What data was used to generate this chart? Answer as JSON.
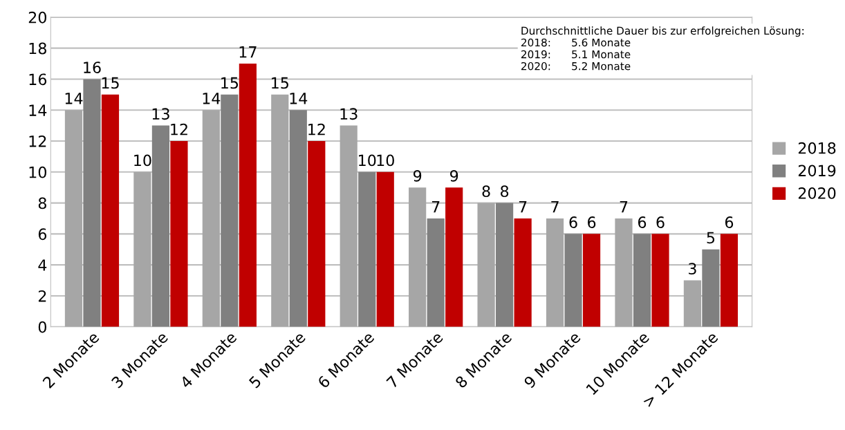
{
  "chart_data": {
    "type": "bar",
    "categories": [
      "2 Monate",
      "3 Monate",
      "4 Monate",
      "5 Monate",
      "6 Monate",
      "7 Monate",
      "8 Monate",
      "9 Monate",
      "10 Monate",
      "> 12 Monate"
    ],
    "series": [
      {
        "name": "2018",
        "color": "#a6a6a6",
        "values": [
          14,
          10,
          14,
          15,
          13,
          9,
          8,
          7,
          7,
          3
        ]
      },
      {
        "name": "2019",
        "color": "#808080",
        "values": [
          16,
          13,
          15,
          14,
          10,
          7,
          8,
          6,
          6,
          5
        ]
      },
      {
        "name": "2020",
        "color": "#c00000",
        "values": [
          15,
          12,
          17,
          12,
          10,
          9,
          7,
          6,
          6,
          6
        ]
      }
    ],
    "ylim": [
      0,
      20
    ],
    "yticks": [
      0,
      2,
      4,
      6,
      8,
      10,
      12,
      14,
      16,
      18,
      20
    ],
    "grid": "y",
    "legend": "right",
    "data_labels": true,
    "annotations": [
      "Durchschnittliche Dauer bis zur erfolgreichen Lösung:",
      "2018:      5.6 Monate",
      "2019:      5.1 Monate",
      "2020:      5.2 Monate"
    ]
  }
}
